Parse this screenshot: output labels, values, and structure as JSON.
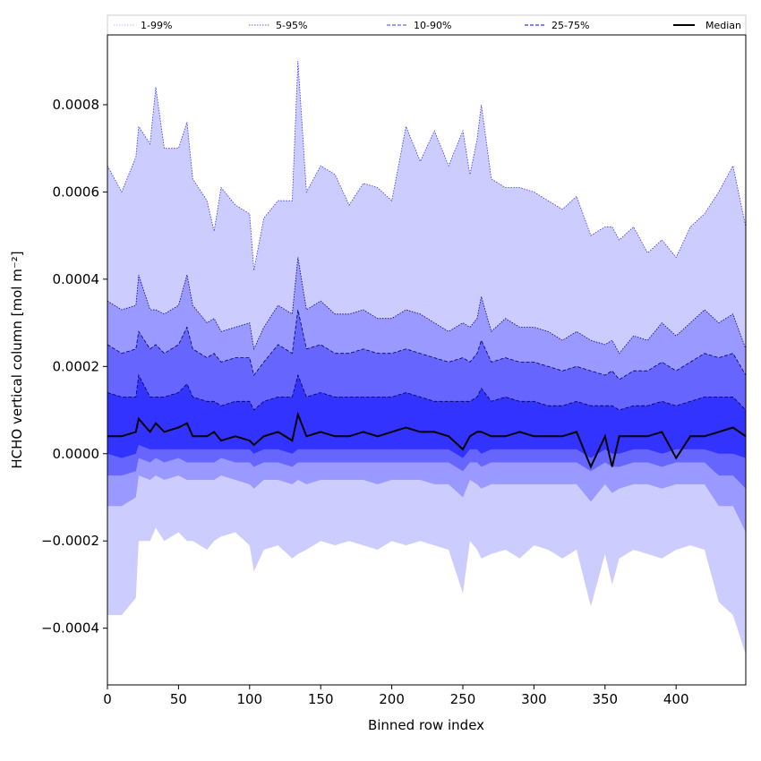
{
  "chart_data": {
    "type": "area",
    "xlabel": "Binned row index",
    "ylabel": "HCHO vertical column [mol m⁻²]",
    "xlim": [
      0,
      449
    ],
    "ylim": [
      -0.00053,
      0.00096
    ],
    "x_ticks": [
      {
        "value": 0,
        "label": "0"
      },
      {
        "value": 50,
        "label": "50"
      },
      {
        "value": 100,
        "label": "100"
      },
      {
        "value": 150,
        "label": "150"
      },
      {
        "value": 200,
        "label": "200"
      },
      {
        "value": 250,
        "label": "250"
      },
      {
        "value": 300,
        "label": "300"
      },
      {
        "value": 350,
        "label": "350"
      },
      {
        "value": 400,
        "label": "400"
      }
    ],
    "y_ticks": [
      {
        "value": -0.0004,
        "label": "−0.0004"
      },
      {
        "value": -0.0002,
        "label": "−0.0002"
      },
      {
        "value": 0.0,
        "label": "0.0000"
      },
      {
        "value": 0.0002,
        "label": "0.0002"
      },
      {
        "value": 0.0004,
        "label": "0.0004"
      },
      {
        "value": 0.0006,
        "label": "0.0006"
      },
      {
        "value": 0.0008,
        "label": "0.0008"
      }
    ],
    "grid": false,
    "legend_position": "top",
    "legend": [
      {
        "label": "1-99%",
        "color": "#ccccff",
        "dash": "dotted"
      },
      {
        "label": "5-95%",
        "color": "#7f7fff",
        "dash": "dotted"
      },
      {
        "label": "10-90%",
        "color": "#6666ff",
        "dash": "dashed"
      },
      {
        "label": "25-75%",
        "color": "#3333ff",
        "dash": "dashed"
      },
      {
        "label": "Median",
        "color": "#000000",
        "dash": "solid"
      }
    ],
    "bands": [
      {
        "name": "1-99%",
        "fill": "#ccccff",
        "edge": "#3333ff"
      },
      {
        "name": "5-95%",
        "fill": "#9999ff",
        "edge": "#000080"
      },
      {
        "name": "10-90%",
        "fill": "#6666ff",
        "edge": "#000060"
      },
      {
        "name": "25-75%",
        "fill": "#3333ff",
        "edge": "#000050"
      }
    ],
    "x": [
      0,
      10,
      20,
      22,
      30,
      34,
      40,
      50,
      56,
      60,
      70,
      75,
      80,
      90,
      100,
      103,
      110,
      120,
      130,
      134,
      140,
      150,
      160,
      170,
      180,
      190,
      200,
      210,
      220,
      230,
      240,
      250,
      255,
      260,
      263,
      270,
      280,
      290,
      300,
      310,
      320,
      330,
      340,
      350,
      355,
      360,
      370,
      380,
      390,
      400,
      410,
      420,
      430,
      440,
      449
    ],
    "series": [
      {
        "name": "1-99%",
        "upper": [
          0.00066,
          0.0006,
          0.00068,
          0.00075,
          0.00071,
          0.00084,
          0.0007,
          0.0007,
          0.00076,
          0.00063,
          0.00058,
          0.00051,
          0.00061,
          0.00057,
          0.00055,
          0.00042,
          0.00054,
          0.00058,
          0.00058,
          0.0009,
          0.0006,
          0.00066,
          0.00064,
          0.00057,
          0.00062,
          0.00061,
          0.00058,
          0.00075,
          0.00067,
          0.00074,
          0.00066,
          0.00074,
          0.00064,
          0.00072,
          0.0008,
          0.00063,
          0.00061,
          0.00061,
          0.0006,
          0.00058,
          0.00056,
          0.00059,
          0.0005,
          0.00052,
          0.00052,
          0.00049,
          0.00052,
          0.00046,
          0.00049,
          0.00045,
          0.00052,
          0.00055,
          0.0006,
          0.00066,
          0.00052
        ],
        "lower": [
          -0.00037,
          -0.00037,
          -0.00033,
          -0.0002,
          -0.0002,
          -0.00017,
          -0.0002,
          -0.00018,
          -0.0002,
          -0.0002,
          -0.00022,
          -0.0002,
          -0.00019,
          -0.00018,
          -0.00021,
          -0.00027,
          -0.00022,
          -0.00021,
          -0.00024,
          -0.00023,
          -0.00022,
          -0.0002,
          -0.00021,
          -0.0002,
          -0.00021,
          -0.00022,
          -0.0002,
          -0.00021,
          -0.0002,
          -0.00021,
          -0.00022,
          -0.00032,
          -0.0002,
          -0.00022,
          -0.00024,
          -0.00023,
          -0.00022,
          -0.00024,
          -0.00021,
          -0.00022,
          -0.00024,
          -0.00022,
          -0.00035,
          -0.00023,
          -0.0003,
          -0.00024,
          -0.00022,
          -0.00023,
          -0.00024,
          -0.00022,
          -0.00021,
          -0.00022,
          -0.00034,
          -0.00037,
          -0.00046
        ]
      },
      {
        "name": "5-95%",
        "upper": [
          0.00035,
          0.00033,
          0.00034,
          0.00041,
          0.00033,
          0.00033,
          0.00032,
          0.00034,
          0.00041,
          0.00034,
          0.0003,
          0.00031,
          0.00028,
          0.00029,
          0.0003,
          0.00024,
          0.00029,
          0.00034,
          0.00032,
          0.00045,
          0.00033,
          0.00035,
          0.00032,
          0.00032,
          0.00033,
          0.00031,
          0.00031,
          0.00033,
          0.00032,
          0.0003,
          0.00028,
          0.0003,
          0.00029,
          0.00031,
          0.00036,
          0.00028,
          0.00031,
          0.00029,
          0.00029,
          0.00028,
          0.00026,
          0.00028,
          0.00026,
          0.00025,
          0.00026,
          0.00023,
          0.00027,
          0.00026,
          0.0003,
          0.00027,
          0.0003,
          0.00033,
          0.0003,
          0.00032,
          0.00024
        ],
        "lower": [
          -0.00012,
          -0.00012,
          -0.0001,
          -5e-05,
          -6e-05,
          -5e-05,
          -6e-05,
          -5e-05,
          -6e-05,
          -6e-05,
          -6e-05,
          -6e-05,
          -5e-05,
          -6e-05,
          -7e-05,
          -8e-05,
          -6e-05,
          -6e-05,
          -7e-05,
          -6e-05,
          -7e-05,
          -6e-05,
          -6e-05,
          -6e-05,
          -6e-05,
          -7e-05,
          -6e-05,
          -6e-05,
          -6e-05,
          -7e-05,
          -7e-05,
          -0.0001,
          -6e-05,
          -7e-05,
          -8e-05,
          -7e-05,
          -7e-05,
          -7e-05,
          -7e-05,
          -7e-05,
          -7e-05,
          -7e-05,
          -0.00011,
          -7e-05,
          -9e-05,
          -8e-05,
          -7e-05,
          -7e-05,
          -8e-05,
          -7e-05,
          -7e-05,
          -7e-05,
          -0.00012,
          -0.00012,
          -0.00018
        ]
      },
      {
        "name": "10-90%",
        "upper": [
          0.00025,
          0.00023,
          0.00024,
          0.00028,
          0.00024,
          0.00025,
          0.00023,
          0.00025,
          0.00029,
          0.00024,
          0.00022,
          0.00023,
          0.00021,
          0.00022,
          0.00022,
          0.00018,
          0.00021,
          0.00025,
          0.00023,
          0.00033,
          0.00024,
          0.00025,
          0.00023,
          0.00023,
          0.00024,
          0.00023,
          0.00023,
          0.00024,
          0.00023,
          0.00022,
          0.00021,
          0.00022,
          0.00021,
          0.00023,
          0.00026,
          0.00021,
          0.00022,
          0.00021,
          0.00021,
          0.0002,
          0.00019,
          0.0002,
          0.00019,
          0.00018,
          0.00019,
          0.00017,
          0.00019,
          0.00019,
          0.00021,
          0.00019,
          0.00021,
          0.00023,
          0.00022,
          0.00023,
          0.00018
        ],
        "lower": [
          -5e-05,
          -5e-05,
          -4e-05,
          -1e-05,
          -2e-05,
          -1e-05,
          -2e-05,
          -1e-05,
          -2e-05,
          -2e-05,
          -2e-05,
          -2e-05,
          -1e-05,
          -2e-05,
          -2e-05,
          -3e-05,
          -2e-05,
          -2e-05,
          -3e-05,
          -2e-05,
          -2e-05,
          -2e-05,
          -2e-05,
          -2e-05,
          -2e-05,
          -2e-05,
          -2e-05,
          -2e-05,
          -2e-05,
          -2e-05,
          -2e-05,
          -4e-05,
          -2e-05,
          -2e-05,
          -3e-05,
          -2e-05,
          -2e-05,
          -2e-05,
          -2e-05,
          -2e-05,
          -2e-05,
          -2e-05,
          -4e-05,
          -2e-05,
          -3e-05,
          -3e-05,
          -2e-05,
          -2e-05,
          -3e-05,
          -2e-05,
          -2e-05,
          -2e-05,
          -5e-05,
          -5e-05,
          -8e-05
        ]
      },
      {
        "name": "25-75%",
        "upper": [
          0.00014,
          0.00013,
          0.00013,
          0.00018,
          0.00013,
          0.00013,
          0.00013,
          0.00014,
          0.00016,
          0.00013,
          0.00012,
          0.00012,
          0.00011,
          0.00012,
          0.00012,
          0.0001,
          0.00012,
          0.00013,
          0.00013,
          0.00018,
          0.00013,
          0.00014,
          0.00013,
          0.00013,
          0.00013,
          0.00013,
          0.00013,
          0.00014,
          0.00013,
          0.00012,
          0.00012,
          0.00012,
          0.00012,
          0.00013,
          0.00015,
          0.00012,
          0.00013,
          0.00012,
          0.00012,
          0.00011,
          0.00011,
          0.00012,
          0.00011,
          0.00011,
          0.00011,
          0.0001,
          0.00011,
          0.00011,
          0.00012,
          0.00011,
          0.00012,
          0.00013,
          0.00013,
          0.00013,
          0.0001
        ],
        "lower": [
          0.0,
          -1e-05,
          0.0,
          2e-05,
          1e-05,
          1e-05,
          1e-05,
          1e-05,
          1e-05,
          1e-05,
          1e-05,
          1e-05,
          1e-05,
          1e-05,
          1e-05,
          0.0,
          1e-05,
          1e-05,
          0.0,
          1e-05,
          1e-05,
          1e-05,
          1e-05,
          1e-05,
          1e-05,
          1e-05,
          1e-05,
          1e-05,
          1e-05,
          1e-05,
          1e-05,
          -1e-05,
          1e-05,
          1e-05,
          0.0,
          1e-05,
          1e-05,
          1e-05,
          1e-05,
          1e-05,
          1e-05,
          1e-05,
          -1e-05,
          1e-05,
          0.0,
          0.0,
          1e-05,
          1e-05,
          0.0,
          1e-05,
          1e-05,
          1e-05,
          0.0,
          0.0,
          -1e-05
        ]
      },
      {
        "name": "Median",
        "values": [
          4e-05,
          4e-05,
          5e-05,
          8e-05,
          5e-05,
          7e-05,
          5e-05,
          6e-05,
          7e-05,
          4e-05,
          4e-05,
          5e-05,
          3e-05,
          4e-05,
          3e-05,
          2e-05,
          4e-05,
          5e-05,
          3e-05,
          9e-05,
          4e-05,
          5e-05,
          4e-05,
          4e-05,
          5e-05,
          4e-05,
          5e-05,
          6e-05,
          5e-05,
          5e-05,
          4e-05,
          1e-05,
          4e-05,
          5e-05,
          5e-05,
          4e-05,
          4e-05,
          5e-05,
          4e-05,
          4e-05,
          4e-05,
          5e-05,
          -3e-05,
          4e-05,
          -3e-05,
          4e-05,
          4e-05,
          4e-05,
          5e-05,
          -1e-05,
          4e-05,
          4e-05,
          5e-05,
          6e-05,
          4e-05
        ]
      }
    ]
  }
}
